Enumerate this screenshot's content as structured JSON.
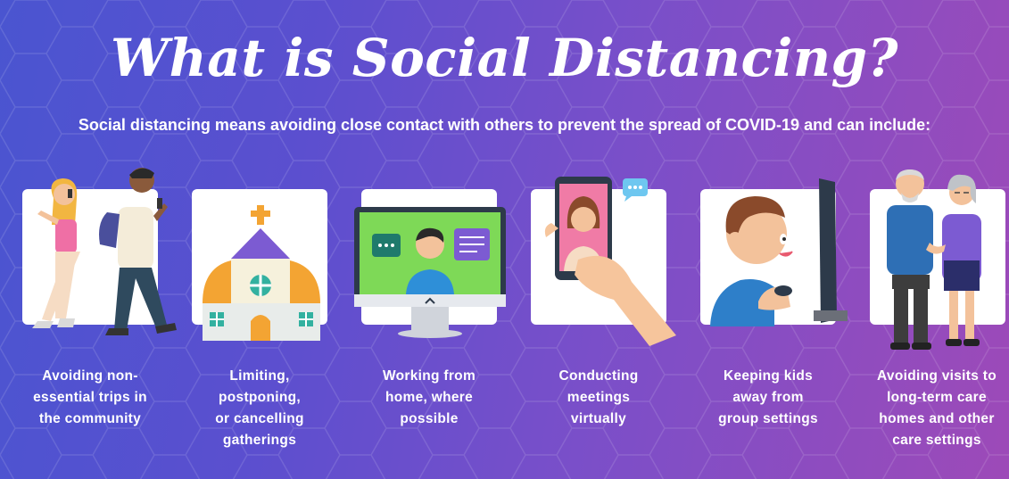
{
  "header": {
    "title": "What is Social Distancing?",
    "subtitle": "Social distancing means avoiding close contact with others to prevent the spread of COVID-19 and can include:"
  },
  "colors": {
    "background_start": "#4a55d0",
    "background_end": "#9d4ab8",
    "card": "#ffffff",
    "text": "#ffffff"
  },
  "items": [
    {
      "icon": "walking-people-icon",
      "caption_lines": [
        "Avoiding non-",
        "essential trips in",
        "the community"
      ]
    },
    {
      "icon": "church-icon",
      "caption_lines": [
        "Limiting,",
        "postponing,",
        "or cancelling",
        "gatherings"
      ]
    },
    {
      "icon": "computer-monitor-icon",
      "caption_lines": [
        "Working from",
        "home, where",
        "possible"
      ]
    },
    {
      "icon": "video-call-phone-icon",
      "caption_lines": [
        "Conducting",
        "meetings",
        "virtually"
      ]
    },
    {
      "icon": "child-gaming-icon",
      "caption_lines": [
        "Keeping kids",
        "away from",
        "group settings"
      ]
    },
    {
      "icon": "elderly-couple-icon",
      "caption_lines": [
        "Avoiding visits to",
        "long-term care",
        "homes and other",
        "care settings"
      ]
    }
  ]
}
